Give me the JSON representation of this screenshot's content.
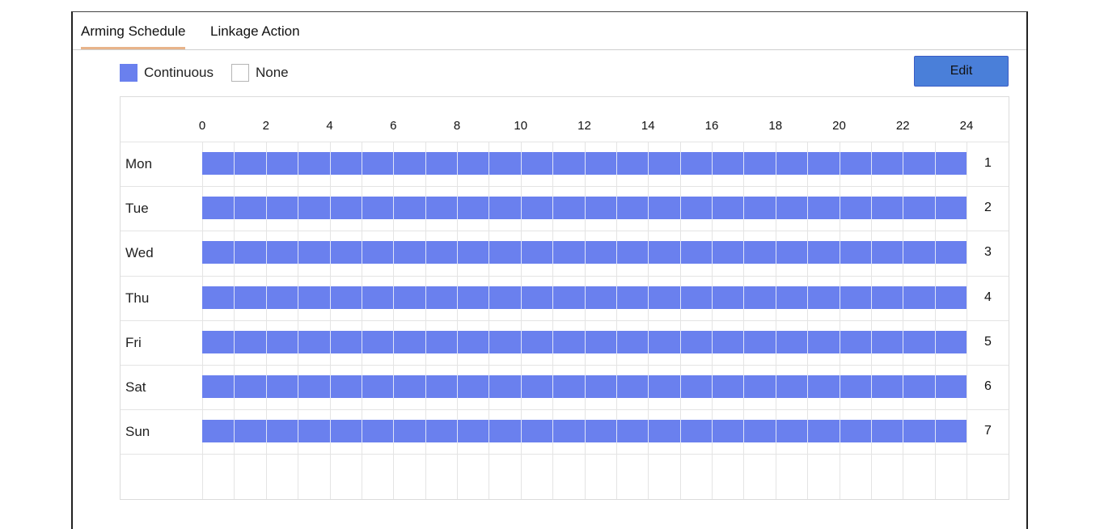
{
  "tabs": [
    {
      "label": "Arming Schedule",
      "active": true
    },
    {
      "label": "Linkage Action",
      "active": false
    }
  ],
  "legend": [
    {
      "label": "Continuous",
      "color": "#6a80ee",
      "border": "#6a80ee"
    },
    {
      "label": "None",
      "color": "#ffffff",
      "border": "#b5b5b5"
    }
  ],
  "edit_button": {
    "label": "Edit",
    "color": "#4a7fd9"
  },
  "schedule": {
    "hour_labels": [
      "0",
      "2",
      "4",
      "6",
      "8",
      "10",
      "12",
      "14",
      "16",
      "18",
      "20",
      "22",
      "24"
    ],
    "days": [
      {
        "label": "Mon",
        "number": "1",
        "start_hour": 0,
        "end_hour": 24
      },
      {
        "label": "Tue",
        "number": "2",
        "start_hour": 0,
        "end_hour": 24
      },
      {
        "label": "Wed",
        "number": "3",
        "start_hour": 0,
        "end_hour": 24
      },
      {
        "label": "Thu",
        "number": "4",
        "start_hour": 0,
        "end_hour": 24
      },
      {
        "label": "Fri",
        "number": "5",
        "start_hour": 0,
        "end_hour": 24
      },
      {
        "label": "Sat",
        "number": "6",
        "start_hour": 0,
        "end_hour": 24
      },
      {
        "label": "Sun",
        "number": "7",
        "start_hour": 0,
        "end_hour": 24
      }
    ],
    "bar_color": "#6a80ee"
  }
}
